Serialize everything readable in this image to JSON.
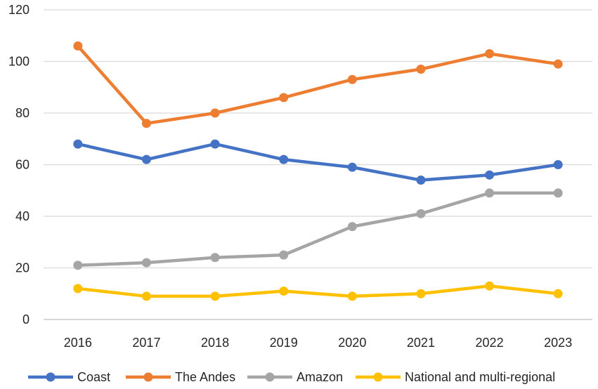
{
  "chart_data": {
    "type": "line",
    "title": "",
    "xlabel": "",
    "ylabel": "",
    "ylim": [
      0,
      120
    ],
    "yticks": [
      0,
      20,
      40,
      60,
      80,
      100,
      120
    ],
    "grid": true,
    "legend_position": "bottom",
    "categories": [
      "2016",
      "2017",
      "2018",
      "2019",
      "2020",
      "2021",
      "2022",
      "2023"
    ],
    "series": [
      {
        "name": "Coast",
        "color": "#4472C4",
        "values": [
          68,
          62,
          68,
          62,
          59,
          54,
          56,
          60
        ]
      },
      {
        "name": "The Andes",
        "color": "#ED7D31",
        "values": [
          106,
          76,
          80,
          86,
          93,
          97,
          103,
          99
        ]
      },
      {
        "name": "Amazon",
        "color": "#A5A5A5",
        "values": [
          21,
          22,
          24,
          25,
          36,
          41,
          49,
          49
        ]
      },
      {
        "name": "National and multi-regional",
        "color": "#FFC000",
        "values": [
          12,
          9,
          9,
          11,
          9,
          10,
          13,
          10
        ]
      }
    ]
  }
}
